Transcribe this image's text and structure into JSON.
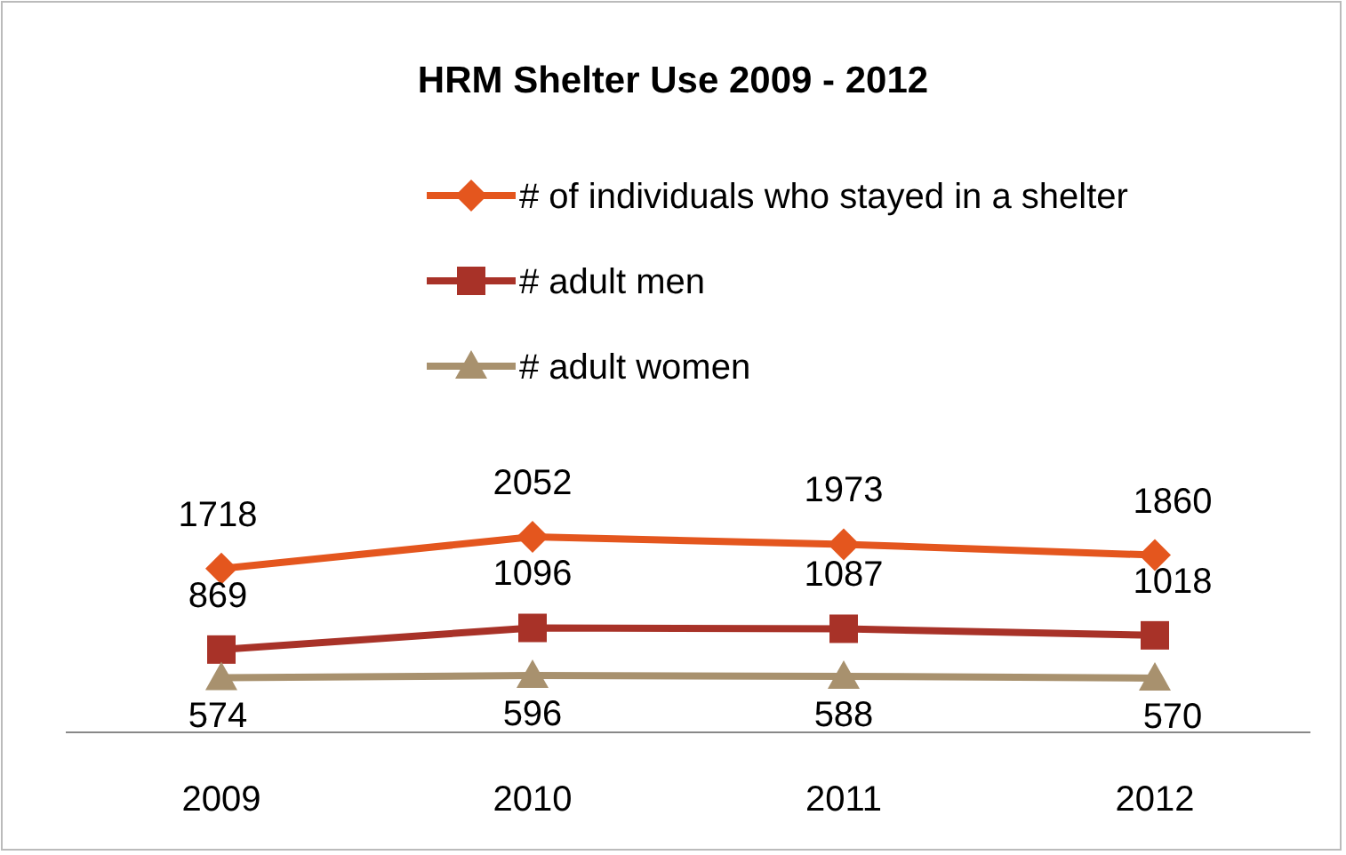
{
  "chart_data": {
    "type": "line",
    "title": "HRM Shelter Use 2009 - 2012",
    "categories": [
      "2009",
      "2010",
      "2011",
      "2012"
    ],
    "series": [
      {
        "name": "# of individuals who stayed in a shelter",
        "color": "#e4561e",
        "values": [
          1718,
          2052,
          1973,
          1860
        ],
        "marker": "diamond"
      },
      {
        "name": "# adult men",
        "color": "#a83228",
        "values": [
          869,
          1096,
          1087,
          1018
        ],
        "marker": "square"
      },
      {
        "name": "# adult women",
        "color": "#a8916e",
        "values": [
          574,
          596,
          588,
          570
        ],
        "marker": "triangle"
      }
    ],
    "tick_labels": "x",
    "data_labels": true,
    "legend": "top",
    "line_style": "solid"
  }
}
